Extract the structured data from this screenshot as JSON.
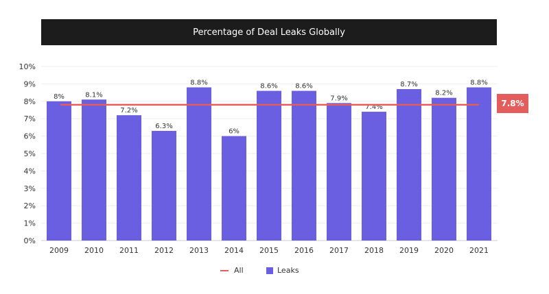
{
  "chart_data": {
    "type": "bar",
    "title": "Percentage of Deal Leaks Globally",
    "categories": [
      "2009",
      "2010",
      "2011",
      "2012",
      "2013",
      "2014",
      "2015",
      "2016",
      "2017",
      "2018",
      "2019",
      "2020",
      "2021"
    ],
    "series": [
      {
        "name": "Leaks",
        "type": "bar",
        "values": [
          8,
          8.1,
          7.2,
          6.3,
          8.8,
          6,
          8.6,
          8.6,
          7.9,
          7.4,
          8.7,
          8.2,
          8.8
        ],
        "labels": [
          "8%",
          "8.1%",
          "7.2%",
          "6.3%",
          "8.8%",
          "6%",
          "8.6%",
          "8.6%",
          "7.9%",
          "7.4%",
          "8.7%",
          "8.2%",
          "8.8%"
        ],
        "color": "#6a5fe0"
      },
      {
        "name": "All",
        "type": "line",
        "value": 7.8,
        "label": "7.8%",
        "color": "#e35d5d"
      }
    ],
    "ylim": [
      0,
      10
    ],
    "yticks": [
      "0%",
      "1%",
      "2%",
      "3%",
      "4%",
      "5%",
      "6%",
      "7%",
      "8%",
      "9%",
      "10%"
    ],
    "grid": true,
    "legend": "bottom-center",
    "xlabel": "",
    "ylabel": ""
  }
}
